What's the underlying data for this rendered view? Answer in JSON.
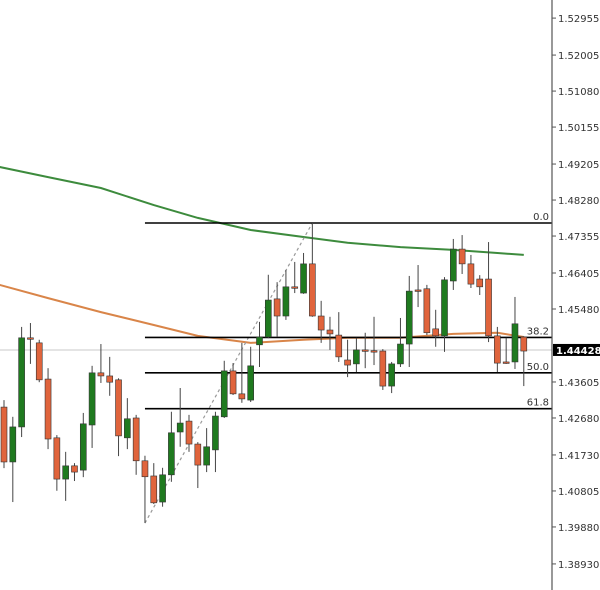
{
  "chart_data": {
    "type": "candlestick",
    "title": "",
    "ylim": [
      1.3826,
      1.5342
    ],
    "grid": false,
    "colors": {
      "up": "#1f7a1f",
      "down": "#e0643c",
      "ma_slow": "#3d8b3d",
      "ma_fast": "#d98549",
      "fib": "#000000",
      "current_line": "#c8c8c8",
      "axis": "#555555"
    },
    "y_ticks": [
      "1.52955",
      "1.52005",
      "1.51080",
      "1.50155",
      "1.49205",
      "1.48280",
      "1.47355",
      "1.46405",
      "1.45480",
      "1.43605",
      "1.42680",
      "1.41730",
      "1.40805",
      "1.39880",
      "1.38930"
    ],
    "current_price": "1.44428",
    "candles": [
      [
        1.4296,
        1.4314,
        1.4139,
        1.4155
      ],
      [
        1.4155,
        1.4271,
        1.4052,
        1.4245
      ],
      [
        1.4245,
        1.4502,
        1.4219,
        1.4474
      ],
      [
        1.4474,
        1.4512,
        1.4407,
        1.4471
      ],
      [
        1.4461,
        1.4469,
        1.436,
        1.4366
      ],
      [
        1.4368,
        1.4396,
        1.4188,
        1.4214
      ],
      [
        1.4217,
        1.4224,
        1.4081,
        1.4111
      ],
      [
        1.4111,
        1.4181,
        1.4055,
        1.4145
      ],
      [
        1.4145,
        1.4152,
        1.4106,
        1.4129
      ],
      [
        1.4134,
        1.4281,
        1.4116,
        1.4253
      ],
      [
        1.425,
        1.4402,
        1.4191,
        1.4384
      ],
      [
        1.4384,
        1.4458,
        1.4358,
        1.4376
      ],
      [
        1.4376,
        1.4425,
        1.4325,
        1.436
      ],
      [
        1.4366,
        1.437,
        1.417,
        1.4222
      ],
      [
        1.4217,
        1.4319,
        1.4188,
        1.4266
      ],
      [
        1.4268,
        1.4276,
        1.4122,
        1.4158
      ],
      [
        1.4158,
        1.4171,
        1.3998,
        1.4117
      ],
      [
        1.4119,
        1.4152,
        1.4047,
        1.405
      ],
      [
        1.4052,
        1.414,
        1.404,
        1.4122
      ],
      [
        1.4122,
        1.4284,
        1.4104,
        1.423
      ],
      [
        1.4232,
        1.4345,
        1.4194,
        1.4255
      ],
      [
        1.426,
        1.4276,
        1.4181,
        1.4201
      ],
      [
        1.4201,
        1.4206,
        1.4088,
        1.4147
      ],
      [
        1.4147,
        1.4242,
        1.4129,
        1.4194
      ],
      [
        1.4186,
        1.4284,
        1.4129,
        1.4273
      ],
      [
        1.4271,
        1.4415,
        1.4268,
        1.4389
      ],
      [
        1.4389,
        1.4409,
        1.4327,
        1.433
      ],
      [
        1.433,
        1.4461,
        1.4307,
        1.4317
      ],
      [
        1.4314,
        1.4451,
        1.4309,
        1.4402
      ],
      [
        1.4456,
        1.4515,
        1.4399,
        1.4476
      ],
      [
        1.4476,
        1.4636,
        1.4473,
        1.4571
      ],
      [
        1.4574,
        1.4617,
        1.4476,
        1.453
      ],
      [
        1.453,
        1.4648,
        1.452,
        1.4605
      ],
      [
        1.4605,
        1.4669,
        1.4589,
        1.4603
      ],
      [
        1.4589,
        1.4692,
        1.4587,
        1.4664
      ],
      [
        1.4664,
        1.4769,
        1.4528,
        1.453
      ],
      [
        1.453,
        1.4569,
        1.4461,
        1.4494
      ],
      [
        1.4494,
        1.4528,
        1.4443,
        1.4484
      ],
      [
        1.4481,
        1.454,
        1.4412,
        1.4425
      ],
      [
        1.4417,
        1.4469,
        1.4373,
        1.4404
      ],
      [
        1.4407,
        1.4474,
        1.4386,
        1.4443
      ],
      [
        1.4443,
        1.4487,
        1.4396,
        1.4441
      ],
      [
        1.4441,
        1.4528,
        1.4404,
        1.444
      ],
      [
        1.444,
        1.4445,
        1.434,
        1.435
      ],
      [
        1.435,
        1.4412,
        1.4332,
        1.4407
      ],
      [
        1.4407,
        1.4525,
        1.4399,
        1.4458
      ],
      [
        1.4458,
        1.4633,
        1.4399,
        1.4594
      ],
      [
        1.4597,
        1.4661,
        1.4553,
        1.4594
      ],
      [
        1.46,
        1.461,
        1.4481,
        1.4487
      ],
      [
        1.4497,
        1.4546,
        1.4451,
        1.4479
      ],
      [
        1.4479,
        1.463,
        1.4438,
        1.4623
      ],
      [
        1.462,
        1.4728,
        1.4597,
        1.4702
      ],
      [
        1.4702,
        1.4738,
        1.4638,
        1.4664
      ],
      [
        1.4664,
        1.4687,
        1.4602,
        1.4612
      ],
      [
        1.4625,
        1.4635,
        1.4584,
        1.4605
      ],
      [
        1.4625,
        1.472,
        1.4463,
        1.4479
      ],
      [
        1.4479,
        1.4502,
        1.4386,
        1.4409
      ],
      [
        1.4412,
        1.4474,
        1.4407,
        1.4409
      ],
      [
        1.4412,
        1.4579,
        1.4394,
        1.451
      ],
      [
        1.4476,
        1.4478,
        1.435,
        1.444
      ]
    ],
    "ma_slow": [
      [
        -0.5,
        1.4913
      ],
      [
        5,
        1.4887
      ],
      [
        11,
        1.4859
      ],
      [
        17,
        1.4815
      ],
      [
        22,
        1.4782
      ],
      [
        28,
        1.4751
      ],
      [
        34,
        1.4733
      ],
      [
        39,
        1.4718
      ],
      [
        45,
        1.4707
      ],
      [
        51,
        1.47
      ],
      [
        56,
        1.4692
      ],
      [
        59,
        1.4687
      ]
    ],
    "ma_fast": [
      [
        -0.5,
        1.461
      ],
      [
        5,
        1.4576
      ],
      [
        11,
        1.454
      ],
      [
        17,
        1.4507
      ],
      [
        22,
        1.4479
      ],
      [
        28,
        1.4461
      ],
      [
        34,
        1.4469
      ],
      [
        39,
        1.4474
      ],
      [
        45,
        1.4474
      ],
      [
        51,
        1.4484
      ],
      [
        56,
        1.4487
      ],
      [
        59,
        1.4476
      ]
    ],
    "fibonacci": {
      "start_candle": 16,
      "end_candle": 35,
      "low": 1.3998,
      "high": 1.4769,
      "levels": [
        {
          "label": "0.0",
          "price": 1.4769
        },
        {
          "label": "38.2",
          "price": 1.4475
        },
        {
          "label": "50.0",
          "price": 1.4384
        },
        {
          "label": "61.8",
          "price": 1.4292
        }
      ]
    }
  }
}
